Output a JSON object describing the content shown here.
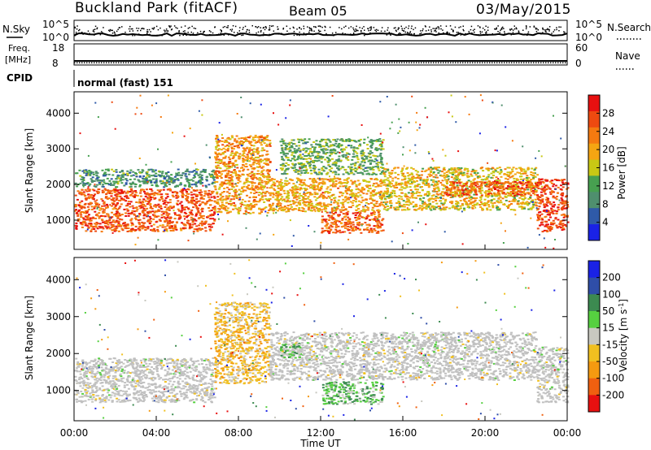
{
  "header": {
    "station": "Buckland Park (fitACF)",
    "beam": "Beam 05",
    "date": "03/May/2015"
  },
  "status_panels": {
    "nsky_label": "N.Sky",
    "nsearch_label": "N.Search",
    "noise_ticks_left": [
      "10^5",
      "10^0"
    ],
    "noise_ticks_right": [
      "10^5",
      "10^0"
    ],
    "freq_label_line1": "Freq.",
    "freq_label_line2": "[MHz]",
    "freq_ticks": [
      "18",
      "8"
    ],
    "nave_label": "Nave",
    "nave_ticks": [
      "60",
      "0"
    ],
    "cpid_label": "CPID",
    "cpid_value": "normal (fast) 151"
  },
  "colors": {
    "power_scale": [
      "#1a22e6",
      "#2f5aa8",
      "#4f8f6e",
      "#47a050",
      "#c8c814",
      "#f5a512",
      "#f57a10",
      "#ee4a10",
      "#e81010"
    ],
    "velocity_scale": [
      "#1a22e6",
      "#2f4ea8",
      "#3c8a50",
      "#56d040",
      "#c8c8c0",
      "#f0c020",
      "#f59a10",
      "#f06010",
      "#e81010"
    ],
    "ground_scatter": "#c0c0c0"
  },
  "chart_data": [
    {
      "type": "heatmap",
      "name": "power",
      "xlabel": "",
      "ylabel": "Slant Range [km]",
      "yticks": [
        "1000",
        "2000",
        "3000",
        "4000"
      ],
      "ylim": [
        180,
        4600
      ],
      "colorbar_label": "Power [dB]",
      "colorbar_ticks": [
        "4",
        "8",
        "12",
        "16",
        "20",
        "24",
        "28"
      ],
      "clim": [
        0,
        32
      ],
      "bands": [
        {
          "t0": 0,
          "t1": 6.8,
          "r0": 700,
          "r1": 1900,
          "value": 26
        },
        {
          "t0": 0,
          "t1": 6.8,
          "r0": 1950,
          "r1": 2450,
          "value": 10
        },
        {
          "t0": 6.8,
          "t1": 9.5,
          "r0": 1200,
          "r1": 3400,
          "value": 21
        },
        {
          "t0": 9.5,
          "t1": 15,
          "r0": 1250,
          "r1": 2200,
          "value": 20
        },
        {
          "t0": 10,
          "t1": 15,
          "r0": 2300,
          "r1": 3300,
          "value": 12
        },
        {
          "t0": 12,
          "t1": 15,
          "r0": 650,
          "r1": 1250,
          "value": 25
        },
        {
          "t0": 15,
          "t1": 22.5,
          "r0": 1300,
          "r1": 2500,
          "value": 18
        },
        {
          "t0": 18,
          "t1": 22.5,
          "r0": 1700,
          "r1": 2100,
          "value": 26
        },
        {
          "t0": 22.5,
          "t1": 24,
          "r0": 700,
          "r1": 2200,
          "value": 27
        }
      ]
    },
    {
      "type": "heatmap",
      "name": "velocity",
      "xlabel": "Time UT",
      "ylabel": "Slant Range [km]",
      "xticks": [
        "00:00",
        "04:00",
        "08:00",
        "12:00",
        "16:00",
        "20:00",
        "00:00"
      ],
      "xlim": [
        0,
        24
      ],
      "yticks": [
        "1000",
        "2000",
        "3000",
        "4000"
      ],
      "ylim": [
        180,
        4600
      ],
      "colorbar_label": "Velocity [m s-1]",
      "colorbar_ticks": [
        "200",
        "100",
        "50",
        "15",
        "-15",
        "-50",
        "-100",
        "-200"
      ],
      "clim": [
        -250,
        250
      ],
      "bands": [
        {
          "t0": 0,
          "t1": 6.8,
          "r0": 700,
          "r1": 1900,
          "value": 0,
          "ground_scatter": true
        },
        {
          "t0": 6.8,
          "t1": 9.5,
          "r0": 1200,
          "r1": 3400,
          "value": -60
        },
        {
          "t0": 9.5,
          "t1": 15,
          "r0": 1300,
          "r1": 2600,
          "value": 0,
          "ground_scatter": true
        },
        {
          "t0": 10,
          "t1": 11,
          "r0": 1900,
          "r1": 2300,
          "value": 60
        },
        {
          "t0": 12,
          "t1": 15,
          "r0": 650,
          "r1": 1250,
          "value": 60
        },
        {
          "t0": 15,
          "t1": 22.5,
          "r0": 1300,
          "r1": 2600,
          "value": 0,
          "ground_scatter": true
        },
        {
          "t0": 22.5,
          "t1": 24,
          "r0": 700,
          "r1": 2200,
          "value": 0,
          "ground_scatter": true
        }
      ]
    }
  ]
}
